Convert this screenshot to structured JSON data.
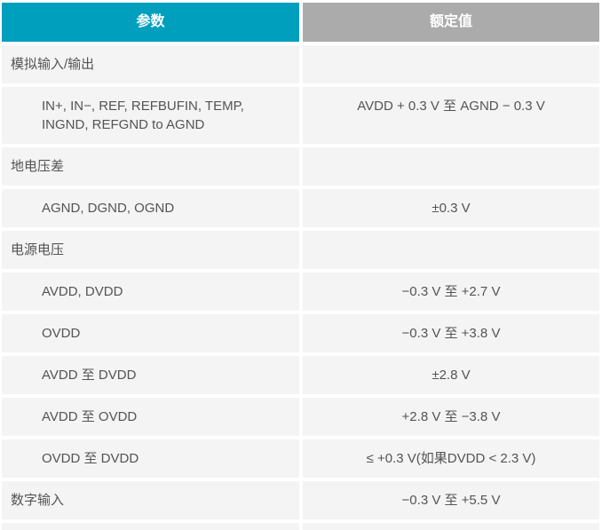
{
  "colors": {
    "header_param_bg": "#009fbe",
    "header_value_bg": "#ababab",
    "row_bg": "#f4f4f4",
    "body_text": "#545454",
    "header_text": "#ffffff"
  },
  "header": {
    "param_label": "参数",
    "value_label": "额定值"
  },
  "table": {
    "rows": [
      {
        "param": "模拟输入/输出",
        "value": "",
        "indent": false
      },
      {
        "param": "IN+, IN−, REF, REFBUFIN, TEMP,\nINGND, REFGND to AGND",
        "value": "AVDD + 0.3 V 至 AGND − 0.3 V",
        "indent": true
      },
      {
        "param": "地电压差",
        "value": "",
        "indent": false
      },
      {
        "param": "AGND, DGND, OGND",
        "value": "±0.3 V",
        "indent": true
      },
      {
        "param": "电源电压",
        "value": "",
        "indent": false
      },
      {
        "param": "AVDD, DVDD",
        "value": "−0.3 V 至 +2.7 V",
        "indent": true
      },
      {
        "param": "OVDD",
        "value": "−0.3 V 至 +3.8 V",
        "indent": true
      },
      {
        "param": "AVDD 至 DVDD",
        "value": "±2.8 V",
        "indent": true
      },
      {
        "param": "AVDD 至 OVDD",
        "value": "+2.8 V 至 −3.8 V",
        "indent": true
      },
      {
        "param": "OVDD 至 DVDD",
        "value": "≤ +0.3 V(如果DVDD < 2.3 V)",
        "indent": true
      },
      {
        "param": "数字输入",
        "value": "−0.3 V 至 +5.5 V",
        "indent": false
      }
    ]
  }
}
